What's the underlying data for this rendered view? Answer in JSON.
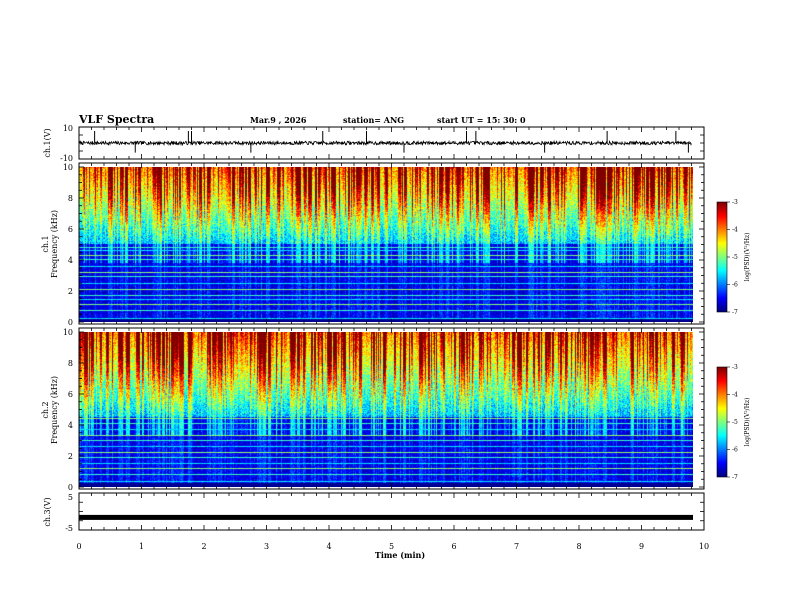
{
  "header": {
    "title": "VLF Spectra",
    "date": "Mar.9  , 2026",
    "station": "station= ANG",
    "start": "start  UT  =   15: 30: 0"
  },
  "chart_data": [
    {
      "type": "line",
      "name": "ch1-waveform",
      "ylabel": "ch.1(V)",
      "ylim": [
        -10,
        10
      ],
      "yticks": [
        "10",
        "-10"
      ],
      "baseline": 0,
      "spikes_at_min": [
        0.25,
        0.9,
        1.75,
        1.8,
        2.75,
        3.9,
        4.6,
        5.2,
        6.2,
        6.35,
        7.45,
        8.45,
        9.55,
        9.75
      ]
    },
    {
      "type": "heatmap",
      "name": "ch1-spectrogram",
      "ylabel": "Frequency (kHz)",
      "channel": "ch.1",
      "ylim": [
        0,
        10
      ],
      "yticks": [
        "0",
        "2",
        "4",
        "6",
        "8",
        "10"
      ],
      "xlim": [
        0,
        9.8
      ],
      "colorbar": {
        "label": "log(PSD)(V²/Hz)",
        "range": [
          -7,
          -3
        ],
        "ticks": [
          "-3",
          "-4",
          "-5",
          "-6",
          "-7"
        ]
      },
      "noise_lines_khz": [
        0.2,
        0.7,
        1.1,
        1.4,
        1.7,
        2.1,
        2.5,
        2.9,
        3.2,
        3.6,
        4.0,
        4.3,
        4.6,
        4.8
      ],
      "broadband_floor_khz": 5.0
    },
    {
      "type": "heatmap",
      "name": "ch2-spectrogram",
      "ylabel": "Frequency (kHz)",
      "channel": "ch.2",
      "ylim": [
        0,
        10
      ],
      "yticks": [
        "0",
        "2",
        "4",
        "6",
        "8",
        "10"
      ],
      "xlim": [
        0,
        9.8
      ],
      "colorbar": {
        "label": "log(PSD)(V²/Hz)",
        "range": [
          -7,
          -3
        ],
        "ticks": [
          "-3",
          "-4",
          "-5",
          "-6",
          "-7"
        ]
      },
      "noise_lines_khz": [
        0.3,
        0.8,
        1.2,
        1.5,
        1.9,
        2.2,
        2.6,
        3.0,
        3.3,
        3.7,
        4.1,
        4.4
      ],
      "broadband_floor_khz": 4.5
    },
    {
      "type": "line",
      "name": "ch3-waveform",
      "ylabel": "ch.3(V)",
      "ylim": [
        -5,
        5
      ],
      "yticks": [
        "5",
        "-5"
      ],
      "baseline": -1.6
    }
  ],
  "xaxis": {
    "label": "Time  (min)",
    "range": [
      0,
      10
    ],
    "ticks": [
      "0",
      "1",
      "2",
      "3",
      "4",
      "5",
      "6",
      "7",
      "8",
      "9",
      "10"
    ]
  }
}
